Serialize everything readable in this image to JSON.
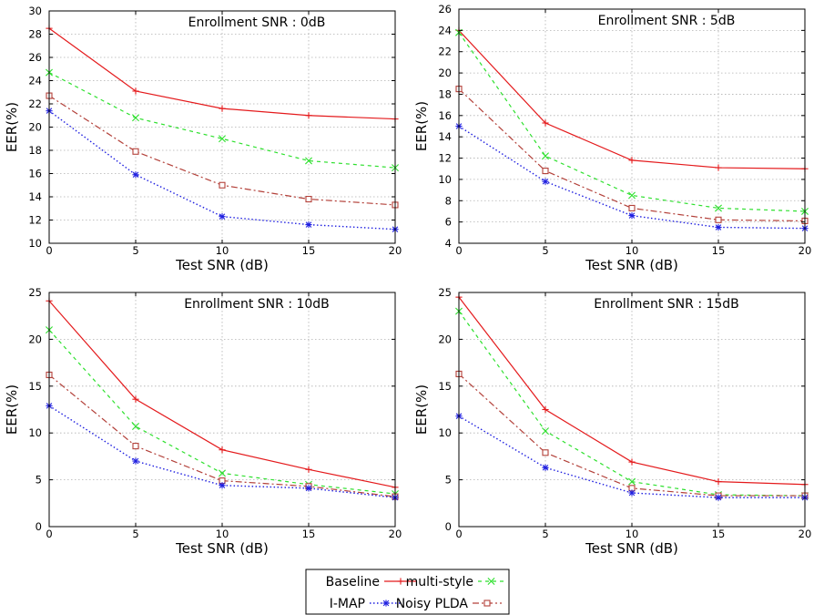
{
  "colors": {
    "baseline": "#e41a1c",
    "multi_style": "#2ee02e",
    "imap": "#1f1fe0",
    "noisy_plda": "#b3413a",
    "grid": "#b0b0b0"
  },
  "legend": {
    "placement": "bottom-center",
    "entries": [
      {
        "key": "baseline",
        "label": "Baseline"
      },
      {
        "key": "multi_style",
        "label": "multi-style"
      },
      {
        "key": "imap",
        "label": "I-MAP"
      },
      {
        "key": "noisy_plda",
        "label": "Noisy PLDA"
      }
    ]
  },
  "chart_data": [
    {
      "type": "line",
      "annotation": "Enrollment SNR : 0dB",
      "xlabel": "Test SNR (dB)",
      "ylabel": "EER(%)",
      "x": [
        0,
        5,
        10,
        15,
        20
      ],
      "xticks": [
        0,
        5,
        10,
        15,
        20
      ],
      "xlim": [
        0,
        20
      ],
      "ylim": [
        10,
        30
      ],
      "yticks": [
        10,
        12,
        14,
        16,
        18,
        20,
        22,
        24,
        26,
        28,
        30
      ],
      "grid": true,
      "series": [
        {
          "key": "baseline",
          "name": "Baseline",
          "values": [
            28.5,
            23.1,
            21.6,
            21.0,
            20.7
          ]
        },
        {
          "key": "multi_style",
          "name": "multi-style",
          "values": [
            24.7,
            20.8,
            19.0,
            17.1,
            16.5
          ]
        },
        {
          "key": "noisy_plda",
          "name": "Noisy PLDA",
          "values": [
            22.7,
            17.9,
            15.0,
            13.8,
            13.3
          ]
        },
        {
          "key": "imap",
          "name": "I-MAP",
          "values": [
            21.4,
            15.9,
            12.3,
            11.6,
            11.2
          ]
        }
      ]
    },
    {
      "type": "line",
      "annotation": "Enrollment SNR : 5dB",
      "xlabel": "Test SNR (dB)",
      "ylabel": "EER(%)",
      "x": [
        0,
        5,
        10,
        15,
        20
      ],
      "xticks": [
        0,
        5,
        10,
        15,
        20
      ],
      "xlim": [
        0,
        20
      ],
      "ylim": [
        4,
        26
      ],
      "yticks": [
        4,
        6,
        8,
        10,
        12,
        14,
        16,
        18,
        20,
        22,
        24,
        26
      ],
      "grid": true,
      "series": [
        {
          "key": "baseline",
          "name": "Baseline",
          "values": [
            24.0,
            15.3,
            11.8,
            11.1,
            11.0
          ]
        },
        {
          "key": "multi_style",
          "name": "multi-style",
          "values": [
            23.8,
            12.2,
            8.5,
            7.3,
            7.0
          ]
        },
        {
          "key": "noisy_plda",
          "name": "Noisy PLDA",
          "values": [
            18.5,
            10.8,
            7.3,
            6.2,
            6.1
          ]
        },
        {
          "key": "imap",
          "name": "I-MAP",
          "values": [
            15.0,
            9.8,
            6.6,
            5.5,
            5.4
          ]
        }
      ]
    },
    {
      "type": "line",
      "annotation": "Enrollment SNR : 10dB",
      "xlabel": "Test SNR (dB)",
      "ylabel": "EER(%)",
      "x": [
        0,
        5,
        10,
        15,
        20
      ],
      "xticks": [
        0,
        5,
        10,
        15,
        20
      ],
      "xlim": [
        0,
        20
      ],
      "ylim": [
        0,
        25
      ],
      "yticks": [
        0,
        5,
        10,
        15,
        20,
        25
      ],
      "grid": true,
      "series": [
        {
          "key": "baseline",
          "name": "Baseline",
          "values": [
            24.1,
            13.6,
            8.2,
            6.1,
            4.2
          ]
        },
        {
          "key": "multi_style",
          "name": "multi-style",
          "values": [
            21.0,
            10.7,
            5.7,
            4.5,
            3.5
          ]
        },
        {
          "key": "noisy_plda",
          "name": "Noisy PLDA",
          "values": [
            16.2,
            8.6,
            4.9,
            4.3,
            3.2
          ]
        },
        {
          "key": "imap",
          "name": "I-MAP",
          "values": [
            12.9,
            7.0,
            4.4,
            4.1,
            3.1
          ]
        }
      ]
    },
    {
      "type": "line",
      "annotation": "Enrollment SNR : 15dB",
      "xlabel": "Test SNR (dB)",
      "ylabel": "EER(%)",
      "x": [
        0,
        5,
        10,
        15,
        20
      ],
      "xticks": [
        0,
        5,
        10,
        15,
        20
      ],
      "xlim": [
        0,
        20
      ],
      "ylim": [
        0,
        25
      ],
      "yticks": [
        0,
        5,
        10,
        15,
        20,
        25
      ],
      "grid": true,
      "series": [
        {
          "key": "baseline",
          "name": "Baseline",
          "values": [
            24.5,
            12.5,
            6.9,
            4.8,
            4.5
          ]
        },
        {
          "key": "multi_style",
          "name": "multi-style",
          "values": [
            23.0,
            10.2,
            4.8,
            3.4,
            3.3
          ]
        },
        {
          "key": "noisy_plda",
          "name": "Noisy PLDA",
          "values": [
            16.3,
            7.9,
            4.1,
            3.3,
            3.3
          ]
        },
        {
          "key": "imap",
          "name": "I-MAP",
          "values": [
            11.8,
            6.3,
            3.6,
            3.1,
            3.1
          ]
        }
      ]
    }
  ]
}
